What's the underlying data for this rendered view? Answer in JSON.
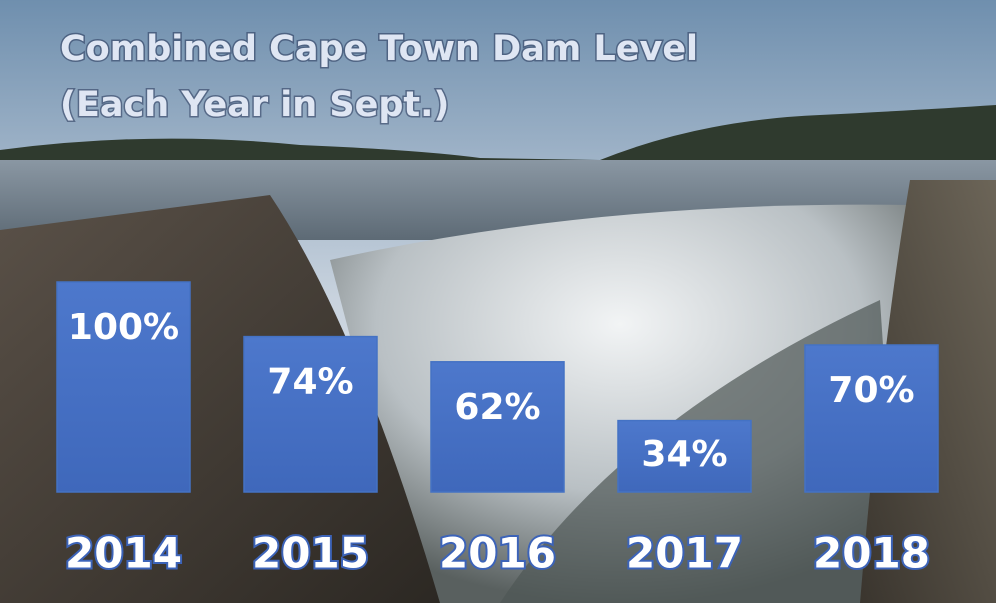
{
  "chart_data": {
    "type": "bar",
    "title": "Combined Cape Town Dam Level",
    "subtitle": "(Each Year in Sept.)",
    "categories": [
      "2014",
      "2015",
      "2016",
      "2017",
      "2018"
    ],
    "values": [
      100,
      74,
      62,
      34,
      70
    ],
    "value_labels": [
      "100%",
      "74%",
      "62%",
      "34%",
      "70%"
    ],
    "color": "#4472c4",
    "ylim": [
      0,
      100
    ]
  }
}
